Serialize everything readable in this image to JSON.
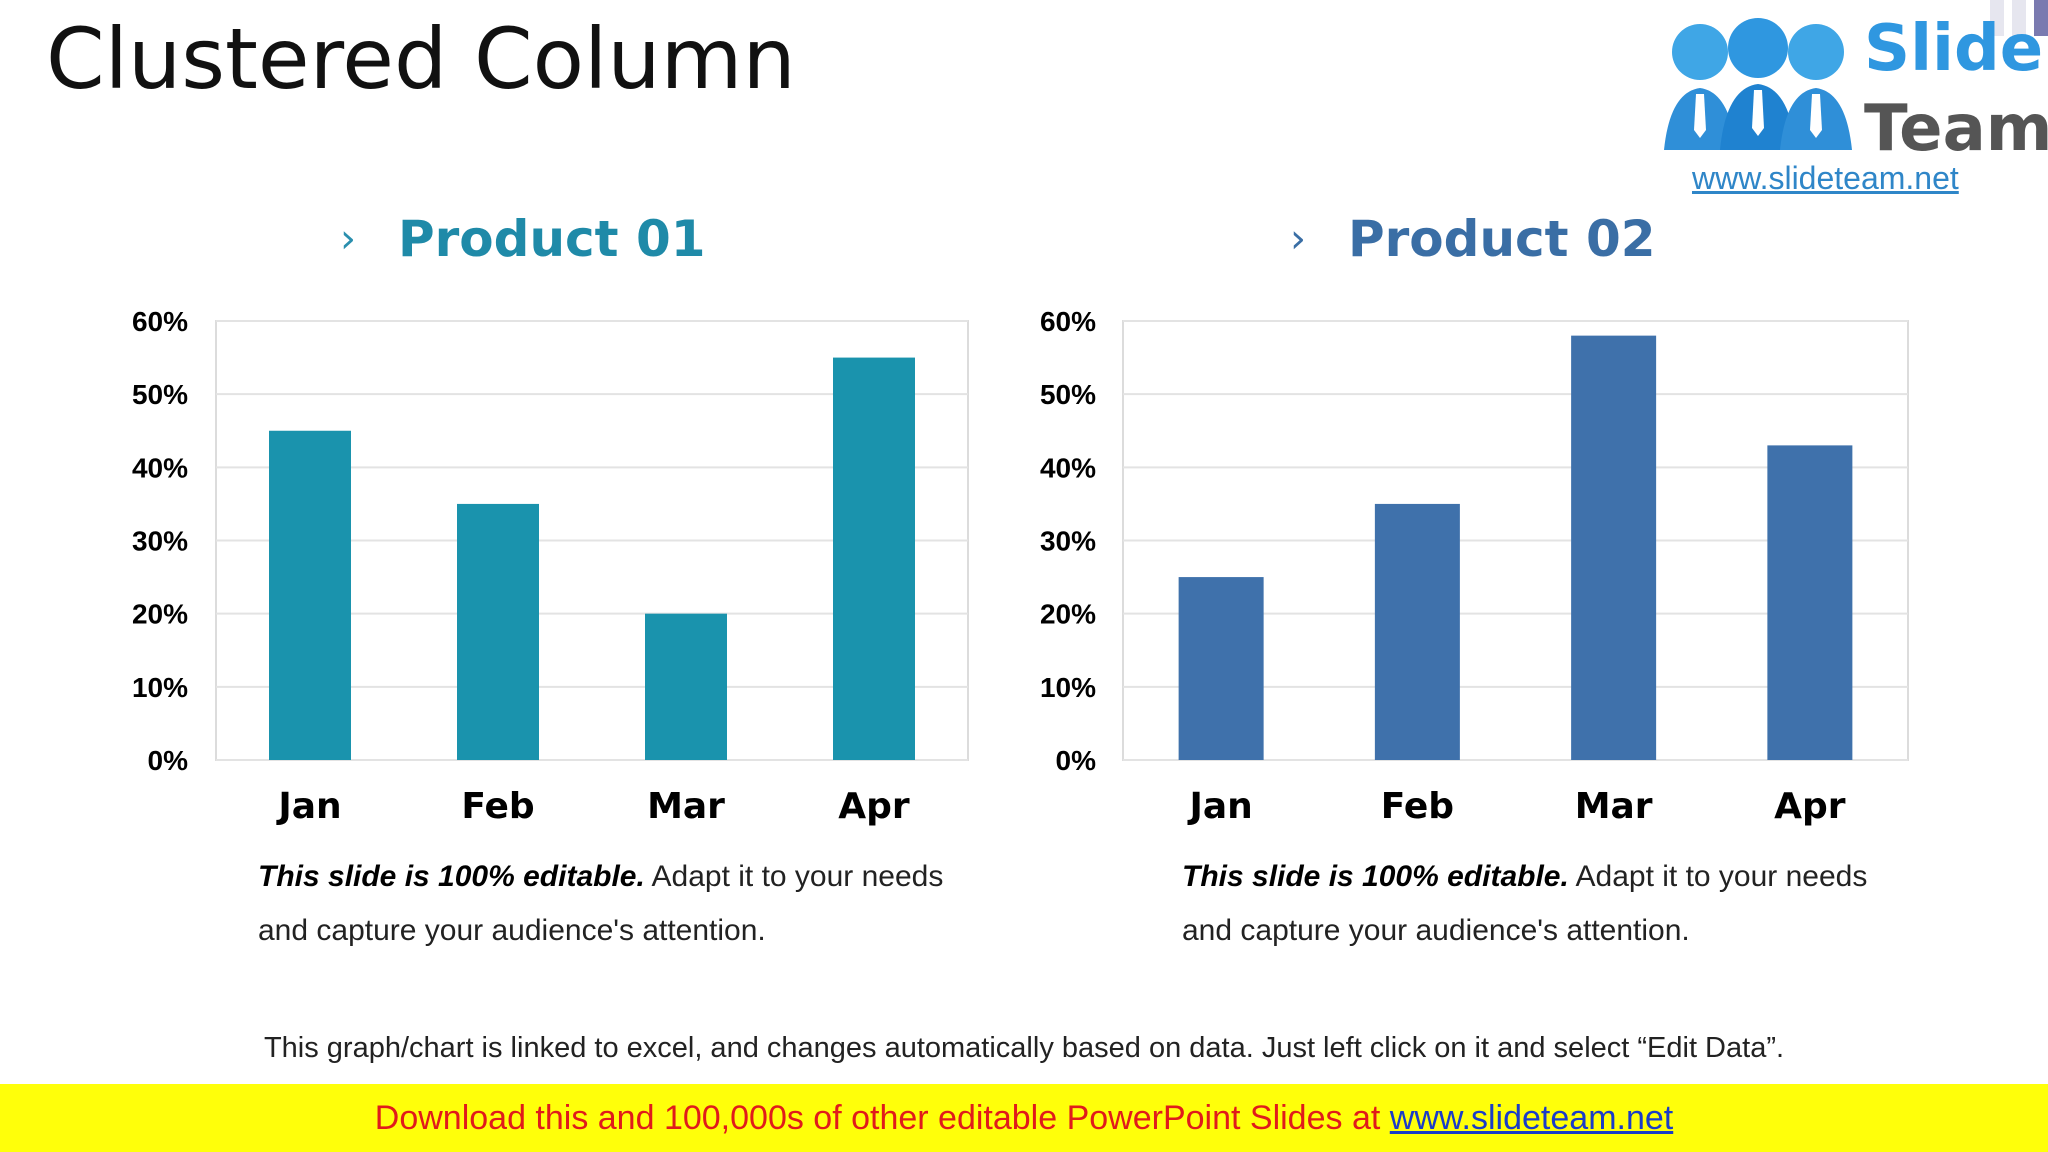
{
  "title": "Clustered Column",
  "logo": {
    "word1": "Slide",
    "word2": "Team",
    "url": "www.slideteam.net"
  },
  "colors": {
    "product1": "#1a93ad",
    "product2": "#3f71ab",
    "heading1": "#1f8aa8",
    "heading2": "#3a6ea5",
    "banner_bg": "#ffff0a",
    "banner_text": "#e01b1b"
  },
  "captions": [
    {
      "bold": "This slide is 100% editable.",
      "rest": " Adapt it to your needs and capture your audience's attention."
    },
    {
      "bold": "This slide is 100% editable.",
      "rest": " Adapt it to your needs and capture your audience's attention."
    }
  ],
  "note": "This graph/chart is linked to excel, and changes automatically based on data. Just left click on it and select “Edit Data”.",
  "banner": {
    "text": "Download this and 100,000s of other editable PowerPoint Slides at ",
    "link": "www.slideteam.net"
  },
  "chart_data": [
    {
      "type": "bar",
      "title": "Product 01",
      "categories": [
        "Jan",
        "Feb",
        "Mar",
        "Apr"
      ],
      "values": [
        45,
        35,
        20,
        55
      ],
      "ylim": [
        0,
        60
      ],
      "yticks": [
        0,
        10,
        20,
        30,
        40,
        50,
        60
      ],
      "ytick_labels": [
        "0%",
        "10%",
        "20%",
        "30%",
        "40%",
        "50%",
        "60%"
      ],
      "grid": true,
      "color": "#1a93ad"
    },
    {
      "type": "bar",
      "title": "Product 02",
      "categories": [
        "Jan",
        "Feb",
        "Mar",
        "Apr"
      ],
      "values": [
        25,
        35,
        58,
        43
      ],
      "ylim": [
        0,
        60
      ],
      "yticks": [
        0,
        10,
        20,
        30,
        40,
        50,
        60
      ],
      "ytick_labels": [
        "0%",
        "10%",
        "20%",
        "30%",
        "40%",
        "50%",
        "60%"
      ],
      "grid": true,
      "color": "#3f71ab"
    }
  ]
}
